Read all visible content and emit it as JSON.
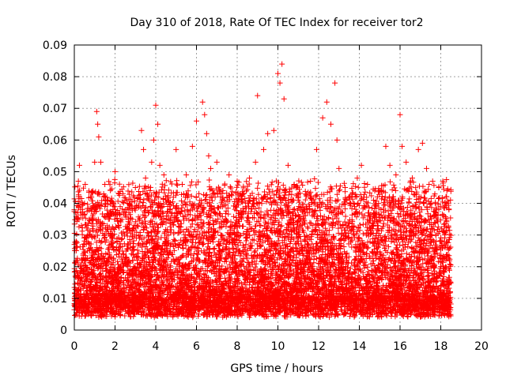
{
  "chart_data": {
    "type": "scatter",
    "title": "Day 310 of 2018, Rate Of TEC Index for receiver tor2",
    "xlabel": "GPS time / hours",
    "ylabel": "ROTI / TECUs",
    "xlim": [
      0,
      20
    ],
    "ylim": [
      0,
      0.09
    ],
    "xticks": [
      "0",
      "2",
      "4",
      "6",
      "8",
      "10",
      "12",
      "14",
      "16",
      "18",
      "20"
    ],
    "yticks": [
      "0",
      "0.01",
      "0.02",
      "0.03",
      "0.04",
      "0.05",
      "0.06",
      "0.07",
      "0.08",
      "0.09"
    ],
    "grid": true,
    "marker": "+",
    "color": "#ff0000",
    "series": [
      {
        "name": "ROTI",
        "x": [
          0.0,
          0.1,
          0.2,
          0.25,
          0.35,
          0.5,
          0.6,
          0.8,
          1.0,
          1.1,
          1.15,
          1.2,
          1.3,
          1.5,
          1.7,
          2.0,
          2.2,
          2.5,
          2.7,
          3.0,
          3.3,
          3.4,
          3.5,
          3.8,
          3.9,
          4.0,
          4.1,
          4.2,
          4.4,
          4.6,
          4.8,
          5.0,
          5.3,
          5.5,
          5.8,
          6.0,
          6.3,
          6.4,
          6.5,
          6.6,
          6.7,
          7.0,
          7.3,
          7.6,
          8.0,
          8.3,
          8.6,
          8.9,
          9.0,
          9.3,
          9.5,
          9.8,
          10.0,
          10.1,
          10.2,
          10.3,
          10.5,
          10.8,
          11.0,
          11.3,
          11.6,
          11.9,
          12.2,
          12.4,
          12.6,
          12.8,
          12.9,
          13.0,
          13.3,
          13.6,
          13.9,
          14.1,
          14.4,
          14.7,
          15.0,
          15.3,
          15.5,
          15.8,
          16.0,
          16.1,
          16.3,
          16.6,
          16.9,
          17.1,
          17.3,
          17.6,
          17.9,
          18.1,
          18.3,
          18.4
        ],
        "y": [
          0.038,
          0.028,
          0.047,
          0.052,
          0.033,
          0.04,
          0.029,
          0.042,
          0.053,
          0.069,
          0.065,
          0.061,
          0.053,
          0.046,
          0.036,
          0.05,
          0.043,
          0.038,
          0.032,
          0.045,
          0.063,
          0.057,
          0.048,
          0.053,
          0.06,
          0.071,
          0.065,
          0.052,
          0.049,
          0.042,
          0.037,
          0.057,
          0.046,
          0.049,
          0.058,
          0.066,
          0.072,
          0.068,
          0.062,
          0.055,
          0.051,
          0.053,
          0.044,
          0.049,
          0.047,
          0.043,
          0.048,
          0.053,
          0.074,
          0.057,
          0.062,
          0.063,
          0.081,
          0.078,
          0.084,
          0.073,
          0.052,
          0.046,
          0.041,
          0.038,
          0.047,
          0.057,
          0.067,
          0.072,
          0.065,
          0.078,
          0.06,
          0.051,
          0.045,
          0.042,
          0.048,
          0.052,
          0.046,
          0.041,
          0.044,
          0.058,
          0.052,
          0.049,
          0.068,
          0.058,
          0.053,
          0.048,
          0.057,
          0.059,
          0.051,
          0.047,
          0.045,
          0.047,
          0.044,
          0.038
        ]
      }
    ]
  }
}
